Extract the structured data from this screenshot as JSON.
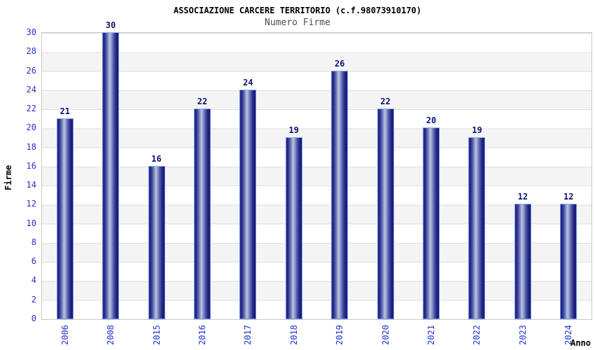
{
  "chart_data": {
    "type": "bar",
    "title": "ASSOCIAZIONE CARCERE TERRITORIO (c.f.98073910170)",
    "subtitle": "Numero Firme",
    "xlabel": "Anno",
    "ylabel": "Firme",
    "categories": [
      "2006",
      "2008",
      "2015",
      "2016",
      "2017",
      "2018",
      "2019",
      "2020",
      "2021",
      "2022",
      "2023",
      "2024"
    ],
    "values": [
      21,
      30,
      16,
      22,
      24,
      19,
      26,
      22,
      20,
      19,
      12,
      12
    ],
    "ylim": [
      0,
      30
    ],
    "ytick_step": 2,
    "legend_position": "none",
    "grid": {
      "horizontal_bands": true,
      "band_step": 2,
      "band_colors": [
        "#ffffff",
        "#f4f4f4"
      ],
      "gridline_color": "#dedede"
    },
    "colors": {
      "bar_edge_dark": "#1e1e7e",
      "bar_center_light": "#bcc3e0",
      "bar_border": "#6b94df",
      "bar_border_top": "#8ab8ec",
      "axis_tick_text": "#2233cc",
      "value_label_text": "#11117a",
      "title_text": "#000000",
      "subtitle_text": "#4d4d4d",
      "axis_label_text": "#000000",
      "plot_border": "#c8c8c8",
      "background": "#ffffff"
    }
  }
}
